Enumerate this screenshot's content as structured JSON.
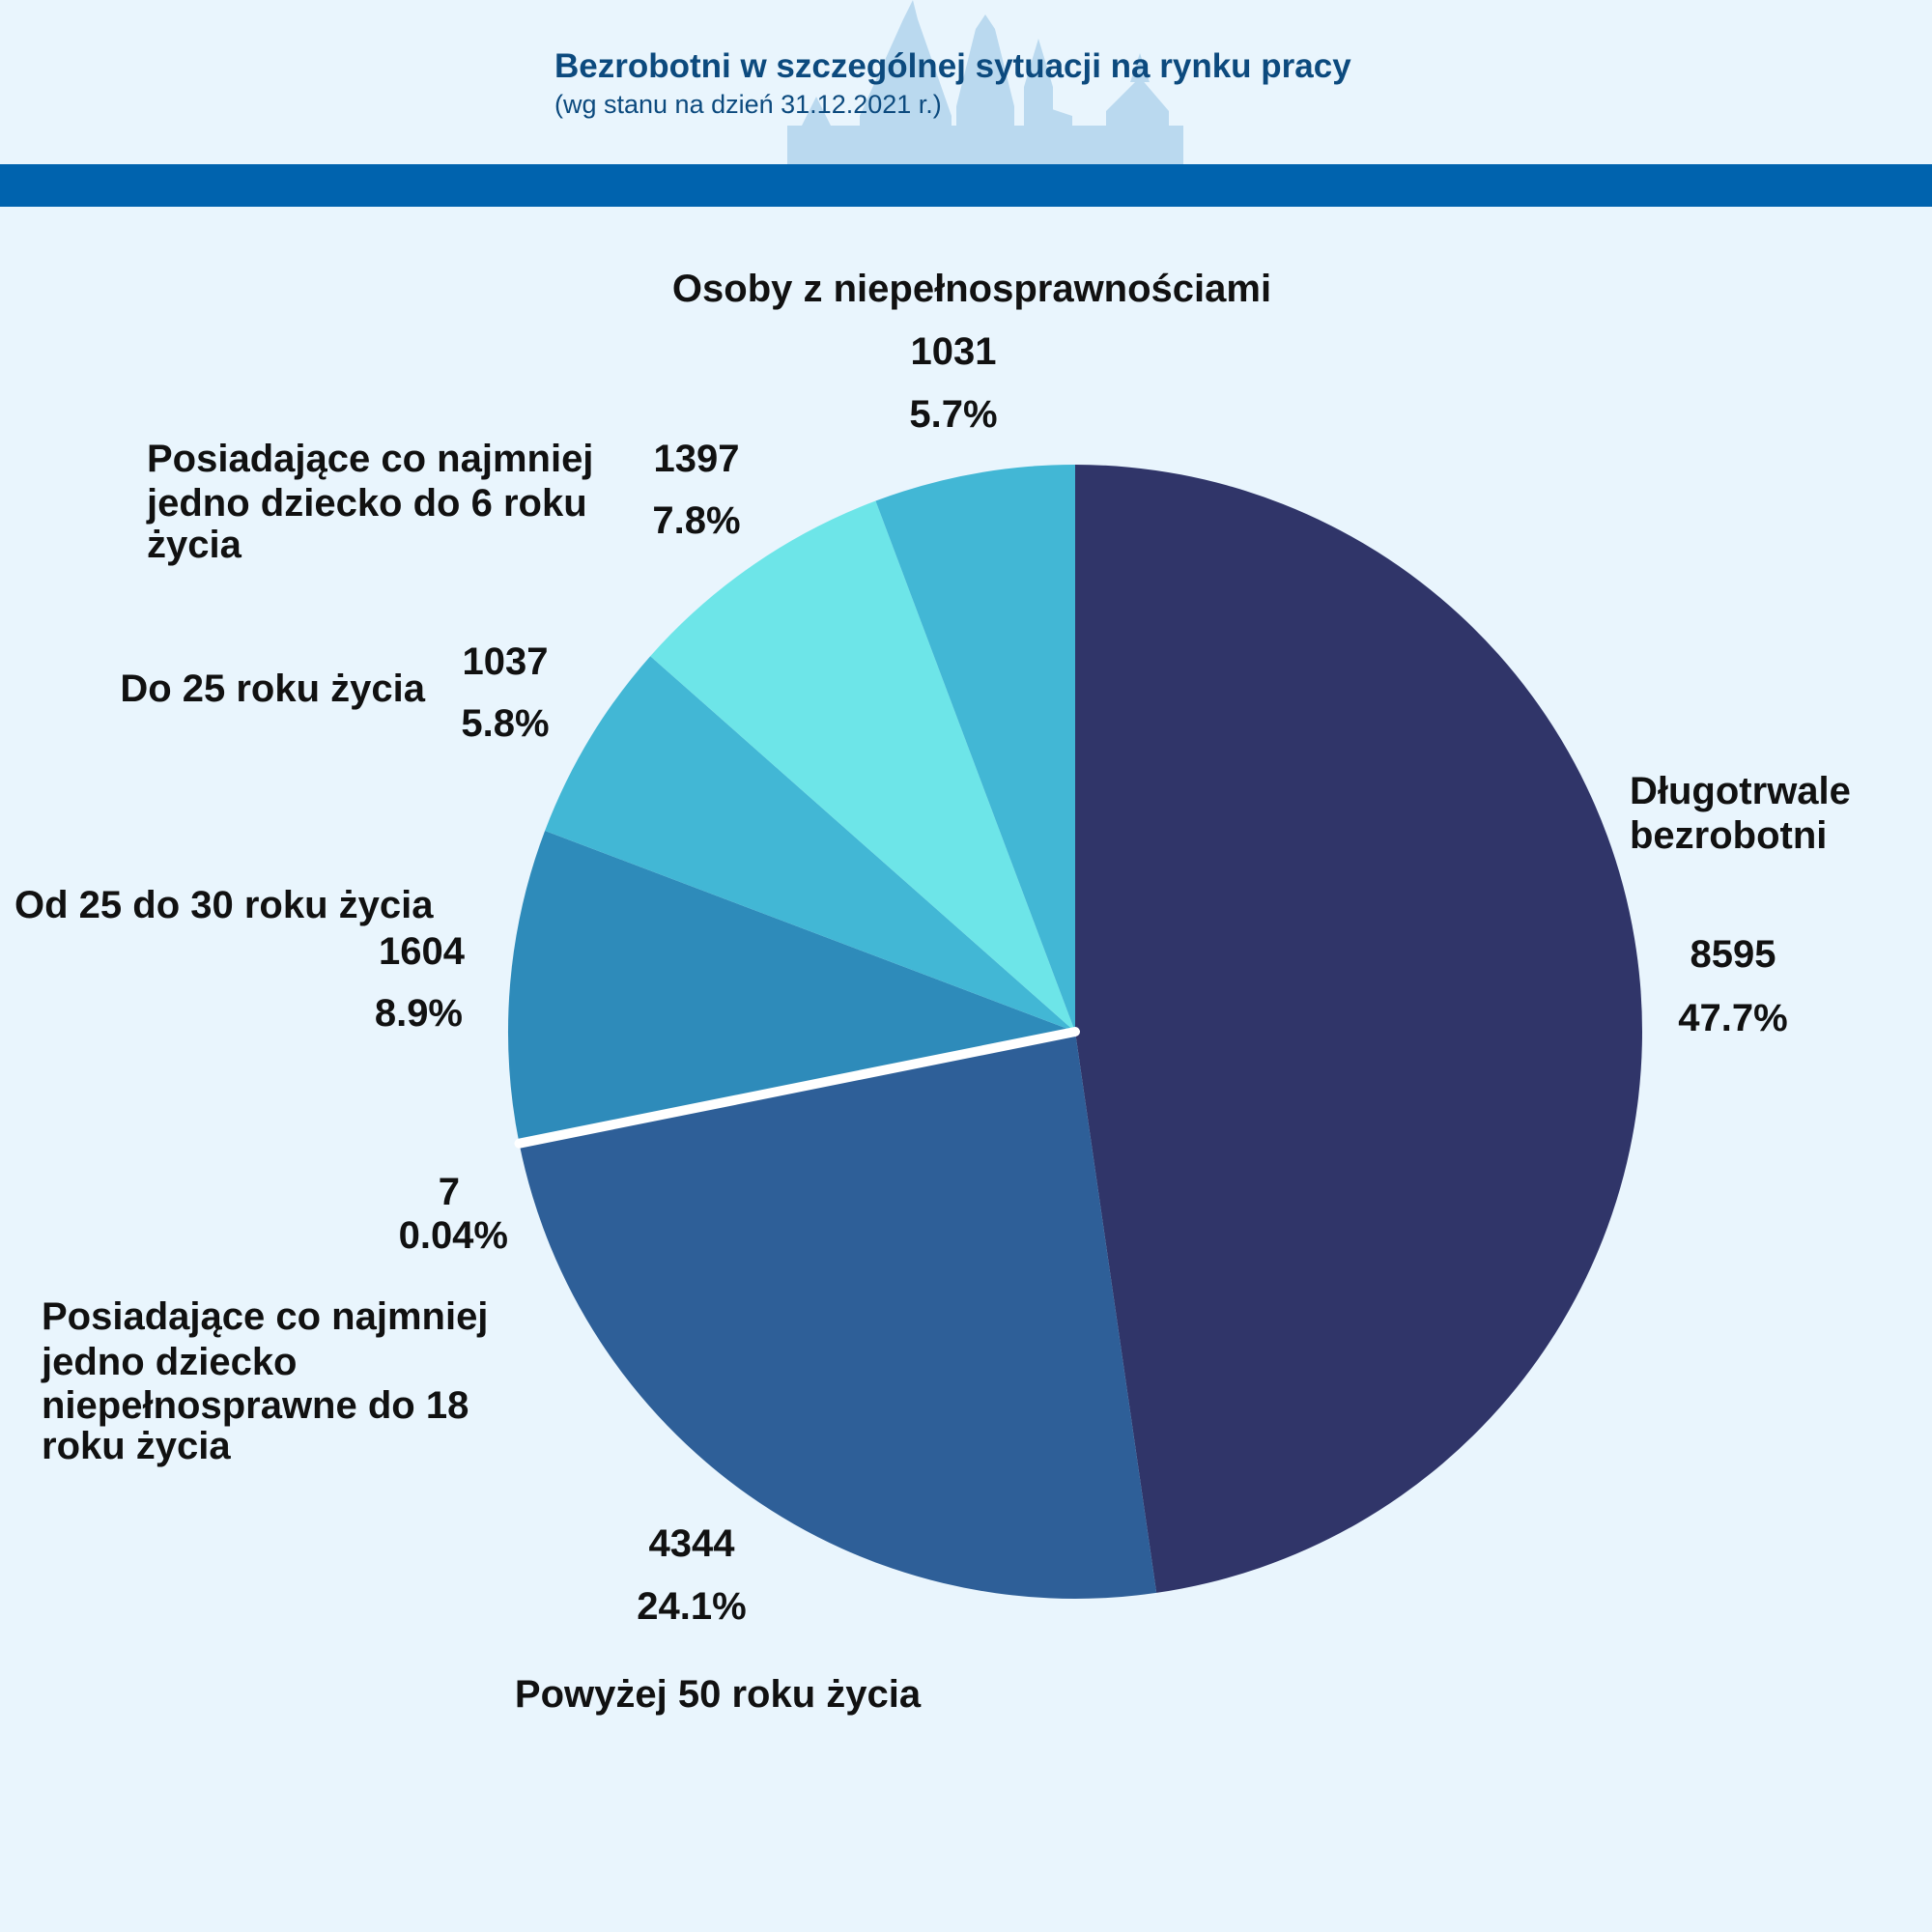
{
  "header": {
    "title": "Bezrobotni w szczególnej sytuacji na rynku pracy",
    "subtitle": "(wg stanu na dzień 31.12.2021 r.)",
    "band_color": "#0063ae"
  },
  "chart_data": {
    "type": "pie",
    "start_angle": "12 o'clock",
    "direction": "clockwise",
    "slices": [
      {
        "label": "Długotrwale bezrobotni",
        "label_lines": [
          "Długotrwale",
          "bezrobotni"
        ],
        "value": 8595,
        "percent": "47.7%",
        "color": "#303569"
      },
      {
        "label": "Powyżej 50 roku życia",
        "label_lines": [
          "Powyżej 50 roku życia"
        ],
        "value": 4344,
        "percent": "24.1%",
        "color": "#2e5f98"
      },
      {
        "label": "Posiadające co najmniej jedno dziecko niepełnosprawne do 18 roku życia",
        "label_lines": [
          "Posiadające co najmniej",
          "jedno dziecko",
          "niepełnosprawne do 18",
          "roku życia"
        ],
        "value": 7,
        "percent": "0.04%",
        "color": "#ffffff"
      },
      {
        "label": "Od 25 do 30 roku życia",
        "label_lines": [
          "Od 25 do 30 roku życia"
        ],
        "value": 1604,
        "percent": "8.9%",
        "color": "#2e8bba"
      },
      {
        "label": "Do 25 roku życia",
        "label_lines": [
          "Do 25 roku życia"
        ],
        "value": 1037,
        "percent": "5.8%",
        "color": "#42b7d5"
      },
      {
        "label": "Posiadające co najmniej jedno dziecko do 6 roku życia",
        "label_lines": [
          "Posiadające co najmniej",
          "jedno dziecko do 6 roku",
          "życia"
        ],
        "value": 1397,
        "percent": "7.8%",
        "color": "#6de5e8"
      },
      {
        "label": "Osoby z niepełnosprawnościami",
        "label_lines": [
          "Osoby z niepełnosprawnościami"
        ],
        "value": 1031,
        "percent": "5.7%",
        "color": "#42b7d5"
      }
    ]
  }
}
